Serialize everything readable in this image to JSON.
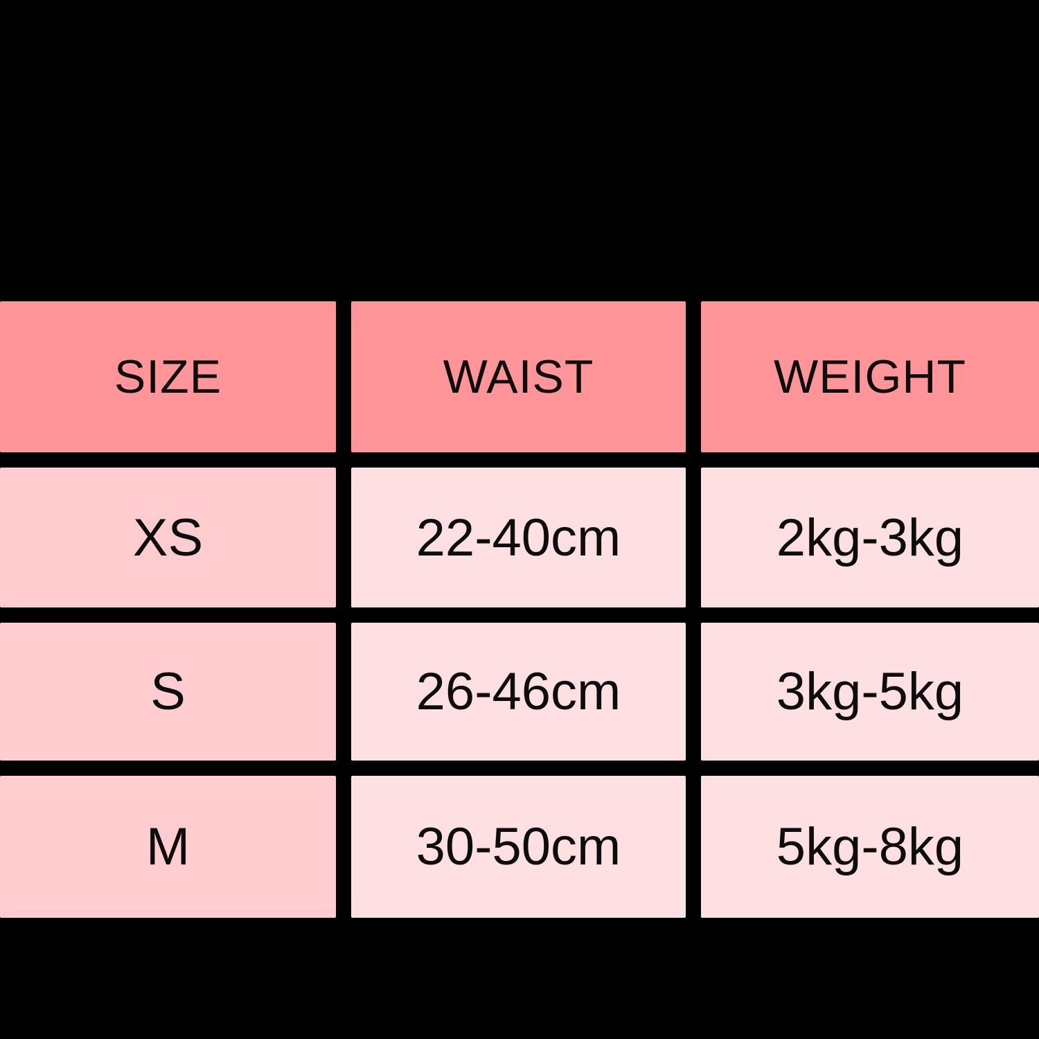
{
  "table": {
    "background_color": "#000000",
    "header_bg_color": "#ff9598",
    "size_column_bg_color": "#ffcdd0",
    "value_column_bg_color": "#ffe0e2",
    "text_color": "#0d0d0d",
    "columns": [
      "SIZE",
      "WAIST",
      "WEIGHT"
    ],
    "rows": [
      {
        "size": "XS",
        "waist": "22-40cm",
        "weight": "2kg-3kg"
      },
      {
        "size": "S",
        "waist": "26-46cm",
        "weight": "3kg-5kg"
      },
      {
        "size": "M",
        "waist": "30-50cm",
        "weight": "5kg-8kg"
      }
    ]
  }
}
